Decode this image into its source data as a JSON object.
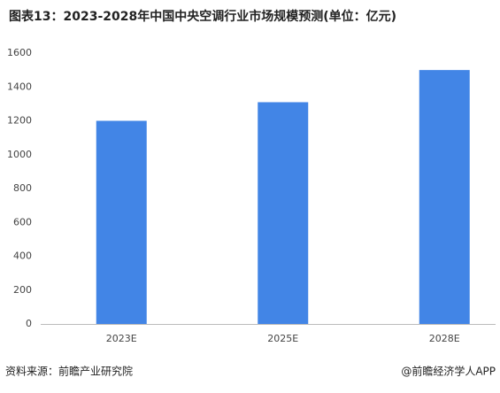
{
  "chart_data": {
    "type": "bar",
    "title": "图表13：2023-2028年中国中央空调行业市场规模预测(单位：亿元)",
    "categories": [
      "2023E",
      "2025E",
      "2028E"
    ],
    "values": [
      1200,
      1310,
      1500
    ],
    "color": "#4285e6",
    "ylim": [
      0,
      1600
    ],
    "yticks": [
      0,
      200,
      400,
      600,
      800,
      1000,
      1200,
      1400,
      1600
    ],
    "grid": false
  },
  "footer": {
    "source": "资料来源：前瞻产业研究院",
    "brand": "@前瞻经济学人APP"
  }
}
